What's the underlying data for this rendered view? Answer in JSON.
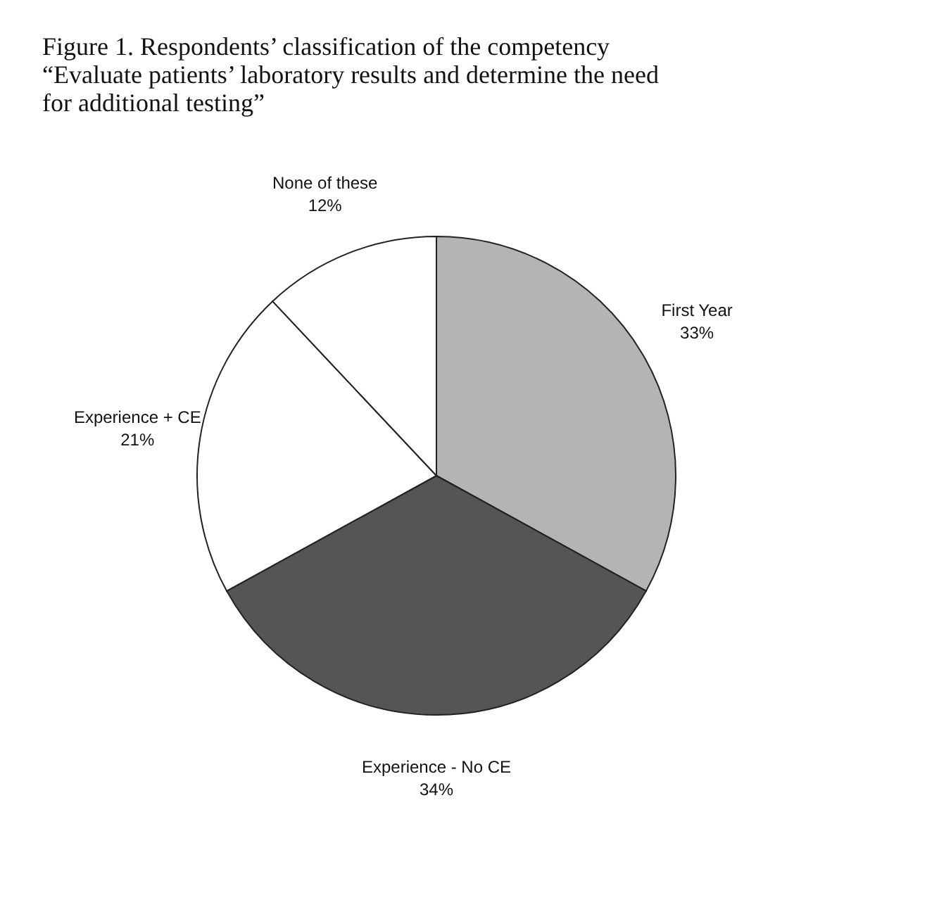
{
  "chart_data": {
    "type": "pie",
    "title": "Figure 1. Respondents’ classification of the competency “Evaluate patients’ laboratory results and determine the need for additional testing”",
    "categories": [
      "First Year",
      "Experience - No CE",
      "Experience + CE",
      "None of these"
    ],
    "values": [
      33,
      34,
      21,
      12
    ],
    "value_labels": [
      "33%",
      "34%",
      "21%",
      "12%"
    ],
    "colors": [
      "#b4b4b4",
      "#555555",
      "#ffffff",
      "#ffffff"
    ],
    "legend": false
  }
}
